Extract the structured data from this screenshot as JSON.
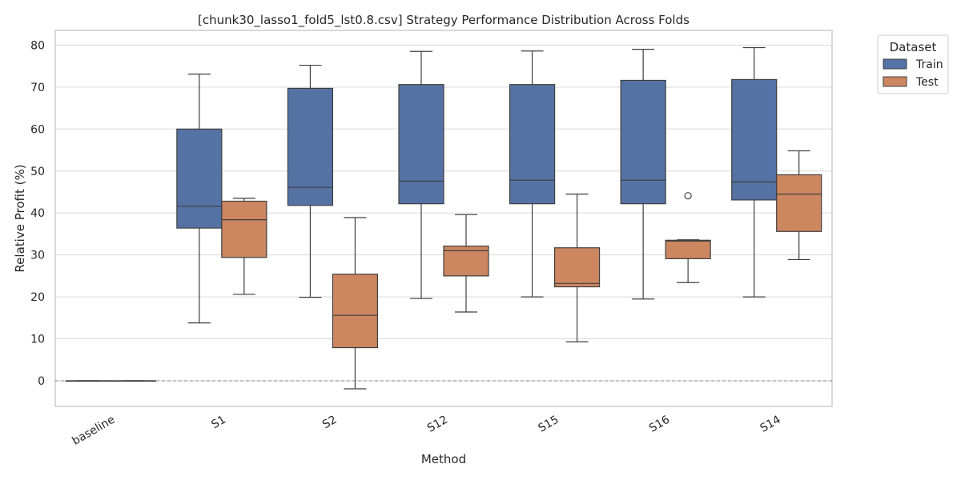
{
  "chart_data": {
    "type": "box",
    "title": "[chunk30_lasso1_fold5_lst0.8.csv] Strategy Performance Distribution Across Folds",
    "xlabel": "Method",
    "ylabel": "Relative Profit (%)",
    "ylim": [
      -6,
      84
    ],
    "yticks": [
      0,
      10,
      20,
      30,
      40,
      50,
      60,
      70,
      80
    ],
    "grid": true,
    "reference_line": {
      "y": 0,
      "style": "dashed"
    },
    "legend": {
      "title": "Dataset",
      "placement": "outside-top-right"
    },
    "categories": [
      "baseline",
      "S1",
      "S2",
      "S12",
      "S15",
      "S16",
      "S14"
    ],
    "series": [
      {
        "name": "Train",
        "color": "#5572a4",
        "boxes": [
          {
            "category": "baseline",
            "whislo": 0,
            "q1": 0,
            "med": 0,
            "q3": 0,
            "whishi": 0,
            "fliers": []
          },
          {
            "category": "S1",
            "whislo": 13.8,
            "q1": 36.4,
            "med": 41.6,
            "q3": 60.0,
            "whishi": 73.1,
            "fliers": []
          },
          {
            "category": "S2",
            "whislo": 19.9,
            "q1": 41.8,
            "med": 46.1,
            "q3": 69.7,
            "whishi": 75.2,
            "fliers": []
          },
          {
            "category": "S12",
            "whislo": 19.6,
            "q1": 42.2,
            "med": 47.6,
            "q3": 70.6,
            "whishi": 78.5,
            "fliers": []
          },
          {
            "category": "S15",
            "whislo": 20.0,
            "q1": 42.2,
            "med": 47.8,
            "q3": 70.6,
            "whishi": 78.6,
            "fliers": []
          },
          {
            "category": "S16",
            "whislo": 19.5,
            "q1": 42.2,
            "med": 47.8,
            "q3": 71.6,
            "whishi": 79.0,
            "fliers": []
          },
          {
            "category": "S14",
            "whislo": 20.0,
            "q1": 43.1,
            "med": 47.4,
            "q3": 71.8,
            "whishi": 79.4,
            "fliers": []
          }
        ]
      },
      {
        "name": "Test",
        "color": "#cc8660",
        "boxes": [
          {
            "category": "baseline",
            "whislo": 0,
            "q1": 0,
            "med": 0,
            "q3": 0,
            "whishi": 0,
            "fliers": []
          },
          {
            "category": "S1",
            "whislo": 20.6,
            "q1": 29.4,
            "med": 38.4,
            "q3": 42.8,
            "whishi": 43.5,
            "fliers": []
          },
          {
            "category": "S2",
            "whislo": -1.9,
            "q1": 7.9,
            "med": 15.6,
            "q3": 25.4,
            "whishi": 38.9,
            "fliers": []
          },
          {
            "category": "S12",
            "whislo": 16.4,
            "q1": 25.0,
            "med": 31.0,
            "q3": 32.1,
            "whishi": 39.6,
            "fliers": []
          },
          {
            "category": "S15",
            "whislo": 9.3,
            "q1": 22.4,
            "med": 23.2,
            "q3": 31.7,
            "whishi": 44.5,
            "fliers": []
          },
          {
            "category": "S16",
            "whislo": 23.4,
            "q1": 29.1,
            "med": 33.3,
            "q3": 33.5,
            "whishi": 33.6,
            "fliers": [
              44.1
            ]
          },
          {
            "category": "S14",
            "whislo": 28.9,
            "q1": 35.6,
            "med": 44.5,
            "q3": 49.1,
            "whishi": 54.8,
            "fliers": []
          }
        ]
      }
    ]
  }
}
